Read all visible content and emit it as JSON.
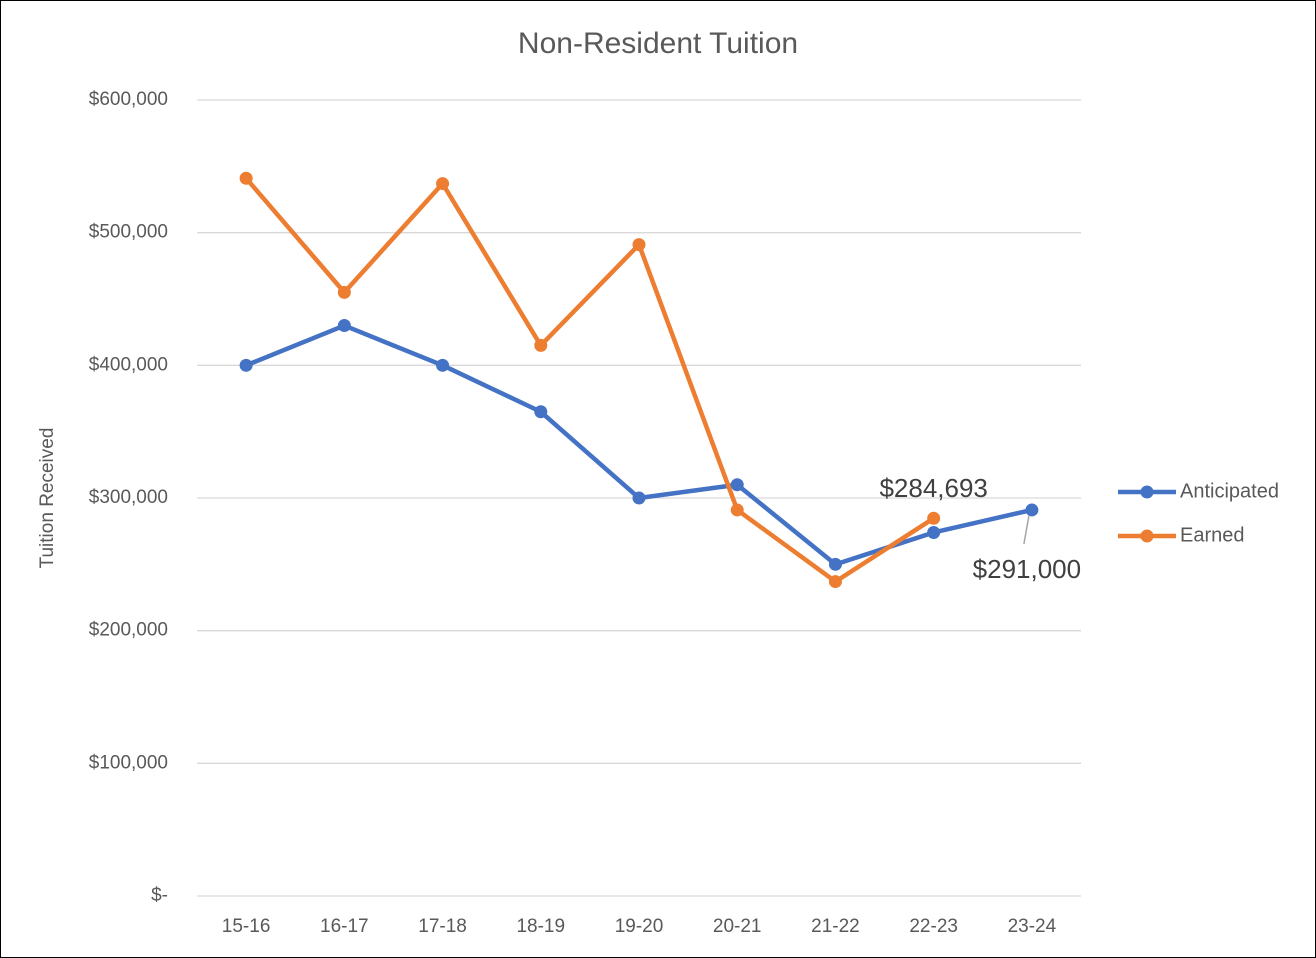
{
  "chart_data": {
    "type": "line",
    "title": "Non-Resident Tuition",
    "y_label": "Tuition Received",
    "categories": [
      "15-16",
      "16-17",
      "17-18",
      "18-19",
      "19-20",
      "20-21",
      "21-22",
      "22-23",
      "23-24"
    ],
    "series": [
      {
        "name": "Anticipated",
        "color": "#4472c4",
        "values": [
          400000,
          430000,
          400000,
          365000,
          300000,
          310000,
          250000,
          274000,
          291000
        ],
        "value_labels": [
          null,
          null,
          null,
          null,
          null,
          null,
          null,
          null,
          "$291,000"
        ]
      },
      {
        "name": "Earned",
        "color": "#ed7d31",
        "values": [
          541000,
          455000,
          537000,
          415000,
          491000,
          291000,
          237000,
          284693,
          null
        ],
        "value_labels": [
          null,
          null,
          null,
          null,
          null,
          null,
          null,
          "$284,693",
          null
        ]
      }
    ],
    "ylim": [
      0,
      600000
    ],
    "yticks": [
      {
        "value": 0,
        "label": "$-"
      },
      {
        "value": 100000,
        "label": "$100,000"
      },
      {
        "value": 200000,
        "label": "$200,000"
      },
      {
        "value": 300000,
        "label": "$300,000"
      },
      {
        "value": 400000,
        "label": "$400,000"
      },
      {
        "value": 500000,
        "label": "$500,000"
      },
      {
        "value": 600000,
        "label": "$600,000"
      }
    ],
    "grid": true,
    "legend": "right"
  }
}
